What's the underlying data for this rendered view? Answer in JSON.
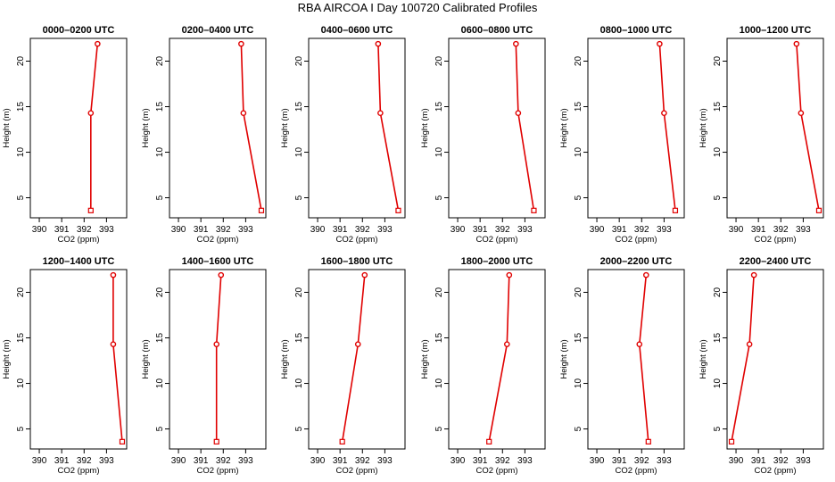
{
  "figure_title": "RBA AIRCOA I  Day 100720  Calibrated Profiles",
  "chart_data": {
    "type": "line",
    "title": "RBA AIRCOA I  Day 100720  Calibrated Profiles",
    "xlabel": "CO2 (ppm)",
    "ylabel": "Height (m)",
    "xlim": [
      389.6,
      393.9
    ],
    "ylim": [
      2.8,
      22.5
    ],
    "x_ticks": [
      "390",
      "391",
      "392",
      "393"
    ],
    "y_ticks": [
      "5",
      "10",
      "15",
      "20"
    ],
    "heights": [
      3.6,
      14.3,
      21.9
    ],
    "panels": [
      {
        "title": "0000–0200 UTC",
        "co2": [
          392.3,
          392.3,
          392.6
        ]
      },
      {
        "title": "0200–0400 UTC",
        "co2": [
          393.7,
          392.9,
          392.8
        ]
      },
      {
        "title": "0400–0600 UTC",
        "co2": [
          393.6,
          392.8,
          392.7
        ]
      },
      {
        "title": "0600–0800 UTC",
        "co2": [
          393.4,
          392.7,
          392.6
        ]
      },
      {
        "title": "0800–1000 UTC",
        "co2": [
          393.5,
          393.0,
          392.8
        ]
      },
      {
        "title": "1000–1200 UTC",
        "co2": [
          393.7,
          392.9,
          392.7
        ]
      },
      {
        "title": "1200–1400 UTC",
        "co2": [
          393.7,
          393.3,
          393.3
        ]
      },
      {
        "title": "1400–1600 UTC",
        "co2": [
          391.7,
          391.7,
          391.9
        ]
      },
      {
        "title": "1600–1800 UTC",
        "co2": [
          391.1,
          391.8,
          392.1
        ]
      },
      {
        "title": "1800–2000 UTC",
        "co2": [
          391.4,
          392.2,
          392.3
        ]
      },
      {
        "title": "2000–2200 UTC",
        "co2": [
          392.3,
          391.9,
          392.2
        ]
      },
      {
        "title": "2200–2400 UTC",
        "co2": [
          389.8,
          390.6,
          390.8
        ]
      }
    ]
  }
}
